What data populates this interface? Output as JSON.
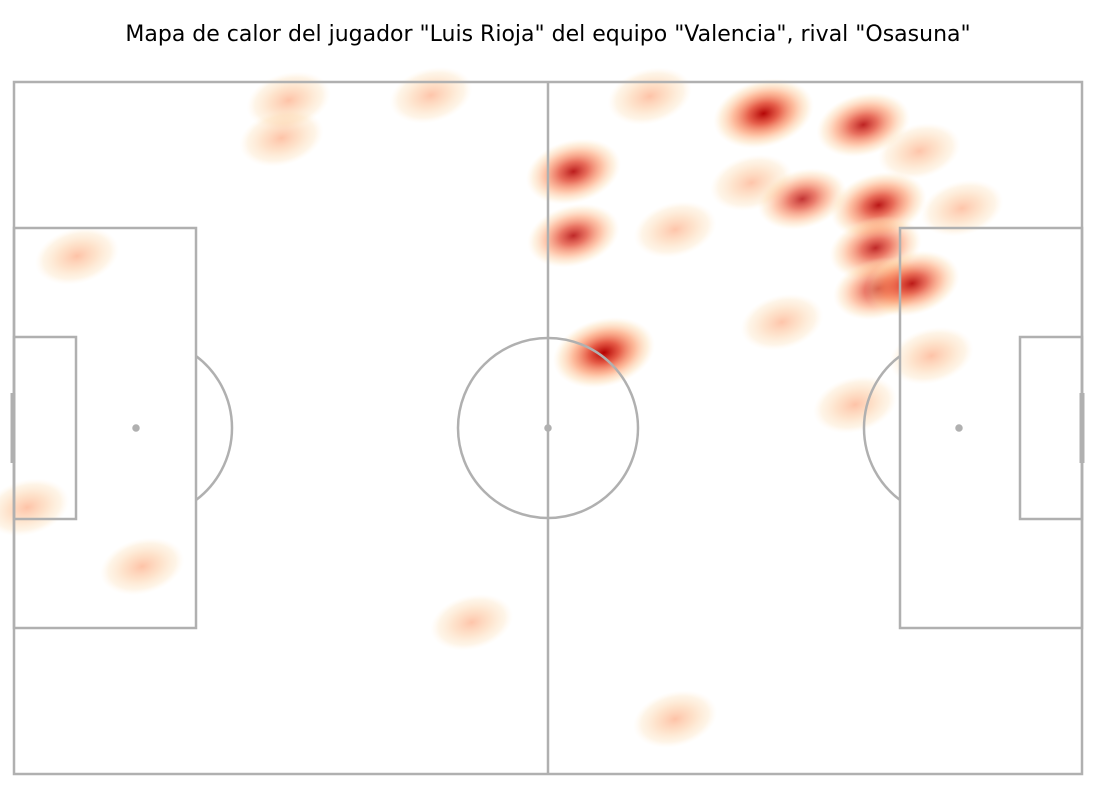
{
  "title": "Mapa de calor del jugador \"Luis Rioja\" del equipo \"Valencia\", rival \"Osasuna\"",
  "colors": {
    "pitch_lines": "#b0b0b0",
    "background": "#ffffff",
    "heat_low": "#fee8c8",
    "heat_mid": "#fc8d59",
    "heat_high": "#b30000"
  },
  "chart_data": {
    "type": "heatmap",
    "title": "Mapa de calor del jugador \"Luis Rioja\" del equipo \"Valencia\", rival \"Osasuna\"",
    "pitch": {
      "length": 105,
      "width": 68,
      "colormap": "OrRd",
      "grid": false,
      "axes_visible": false
    },
    "points": [
      {
        "x": 27.0,
        "y": 66.2,
        "intensity": 0.35
      },
      {
        "x": 41.0,
        "y": 66.7,
        "intensity": 0.3
      },
      {
        "x": 26.3,
        "y": 62.5,
        "intensity": 0.35
      },
      {
        "x": 62.5,
        "y": 66.6,
        "intensity": 0.35
      },
      {
        "x": 73.7,
        "y": 64.9,
        "intensity": 0.95
      },
      {
        "x": 83.5,
        "y": 63.8,
        "intensity": 0.7
      },
      {
        "x": 89.0,
        "y": 61.2,
        "intensity": 0.3
      },
      {
        "x": 55.0,
        "y": 59.2,
        "intensity": 0.75
      },
      {
        "x": 72.5,
        "y": 58.1,
        "intensity": 0.3
      },
      {
        "x": 77.5,
        "y": 56.5,
        "intensity": 0.55
      },
      {
        "x": 85.0,
        "y": 55.9,
        "intensity": 0.8
      },
      {
        "x": 93.2,
        "y": 55.6,
        "intensity": 0.3
      },
      {
        "x": 55.0,
        "y": 52.9,
        "intensity": 0.65
      },
      {
        "x": 65.0,
        "y": 53.5,
        "intensity": 0.3
      },
      {
        "x": 84.7,
        "y": 51.7,
        "intensity": 0.65
      },
      {
        "x": 6.2,
        "y": 50.9,
        "intensity": 0.35
      },
      {
        "x": 85.0,
        "y": 47.7,
        "intensity": 0.6
      },
      {
        "x": 88.3,
        "y": 48.2,
        "intensity": 0.75
      },
      {
        "x": 75.5,
        "y": 44.4,
        "intensity": 0.3
      },
      {
        "x": 58.0,
        "y": 41.4,
        "intensity": 1.0
      },
      {
        "x": 90.2,
        "y": 41.1,
        "intensity": 0.35
      },
      {
        "x": 82.7,
        "y": 36.3,
        "intensity": 0.35
      },
      {
        "x": 1.3,
        "y": 26.2,
        "intensity": 0.35
      },
      {
        "x": 12.6,
        "y": 20.4,
        "intensity": 0.35
      },
      {
        "x": 45.0,
        "y": 14.9,
        "intensity": 0.3
      },
      {
        "x": 65.0,
        "y": 5.4,
        "intensity": 0.35
      }
    ]
  }
}
